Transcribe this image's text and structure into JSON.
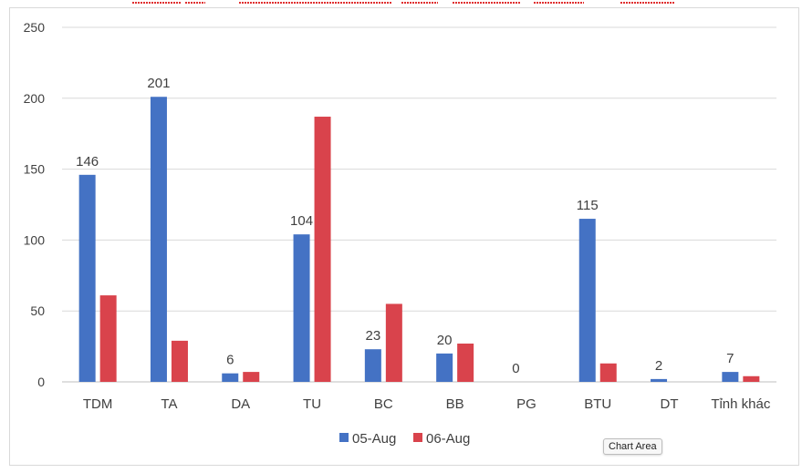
{
  "chart_data": {
    "type": "bar",
    "categories": [
      "TDM",
      "TA",
      "DA",
      "TU",
      "BC",
      "BB",
      "PG",
      "BTU",
      "DT",
      "Tỉnh khác"
    ],
    "series": [
      {
        "name": "05-Aug",
        "values": [
          146,
          201,
          6,
          104,
          23,
          20,
          0,
          115,
          2,
          7
        ],
        "color": "#4472c4"
      },
      {
        "name": "06-Aug",
        "values": [
          61,
          29,
          7,
          187,
          55,
          27,
          0,
          13,
          0,
          4
        ],
        "color": "#d9434c"
      }
    ],
    "data_labels": [
      "146",
      "201",
      "6",
      "104",
      "23",
      "20",
      "0",
      "115",
      "2",
      "7"
    ],
    "yticks": [
      "0",
      "50",
      "100",
      "150",
      "200",
      "250"
    ],
    "ylim": [
      0,
      250
    ],
    "grid": true,
    "legend_position": "bottom",
    "title": "",
    "xlabel": "",
    "ylabel": ""
  },
  "tooltip": {
    "label": "Chart Area"
  }
}
